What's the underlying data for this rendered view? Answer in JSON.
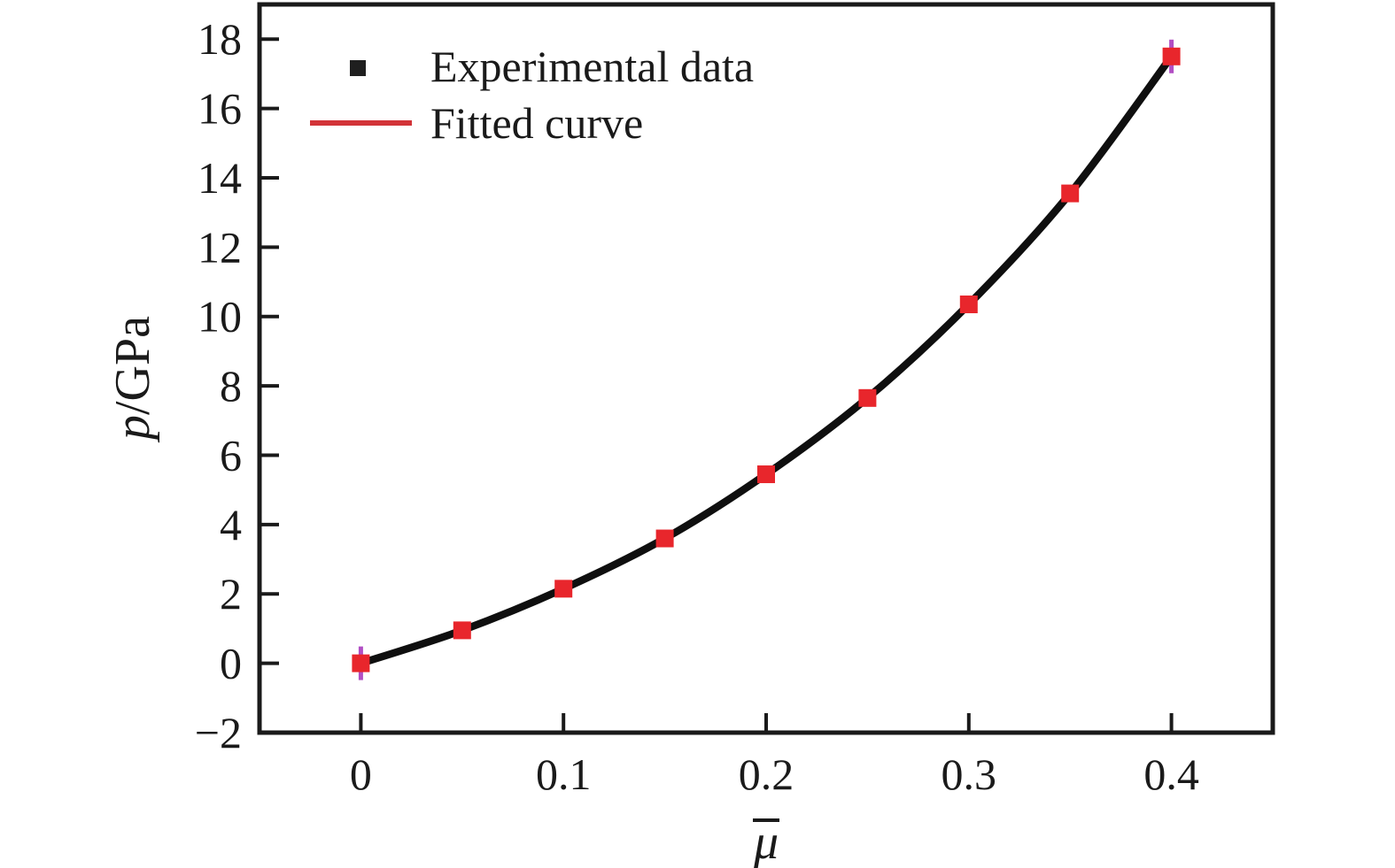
{
  "figure": {
    "background": "#ffffff",
    "axis_color": "#1a1a1a"
  },
  "chart_data": {
    "type": "scatter+line",
    "title": "",
    "xlabel": {
      "text": "μ",
      "overline": true
    },
    "ylabel": {
      "italic_part": "p",
      "regular_part": "/GPa"
    },
    "xlim": [
      -0.05,
      0.45
    ],
    "ylim": [
      -2,
      19
    ],
    "grid": false,
    "x": [
      0,
      0.05,
      0.1,
      0.15,
      0.2,
      0.25,
      0.3,
      0.35,
      0.4
    ],
    "y": [
      0,
      0.95,
      2.15,
      3.6,
      5.45,
      7.65,
      10.35,
      13.55,
      17.5
    ],
    "x_ticks": [
      {
        "value": 0,
        "label": "0"
      },
      {
        "value": 0.1,
        "label": "0.1"
      },
      {
        "value": 0.2,
        "label": "0.2"
      },
      {
        "value": 0.3,
        "label": "0.3"
      },
      {
        "value": 0.4,
        "label": "0.4"
      }
    ],
    "y_ticks": [
      {
        "value": -2,
        "label": "−2"
      },
      {
        "value": 0,
        "label": "0"
      },
      {
        "value": 2,
        "label": "2"
      },
      {
        "value": 4,
        "label": "4"
      },
      {
        "value": 6,
        "label": "6"
      },
      {
        "value": 8,
        "label": "8"
      },
      {
        "value": 10,
        "label": "10"
      },
      {
        "value": 12,
        "label": "12"
      },
      {
        "value": 14,
        "label": "14"
      },
      {
        "value": 16,
        "label": "16"
      },
      {
        "value": 18,
        "label": "18"
      }
    ],
    "legend_position": "top-left",
    "series": [
      {
        "name": "Experimental data",
        "role": "scatter",
        "marker": "square",
        "marker_color": "#e8262c",
        "marker_size": 20,
        "legend_swatch_color": "#1f1f1f"
      },
      {
        "name": "Fitted curve",
        "role": "line",
        "line_color": "#0f0f0f",
        "line_width": 8.5,
        "legend_swatch_color": "#d23338"
      }
    ],
    "endpoint_accent_color": "#b14ec4"
  }
}
